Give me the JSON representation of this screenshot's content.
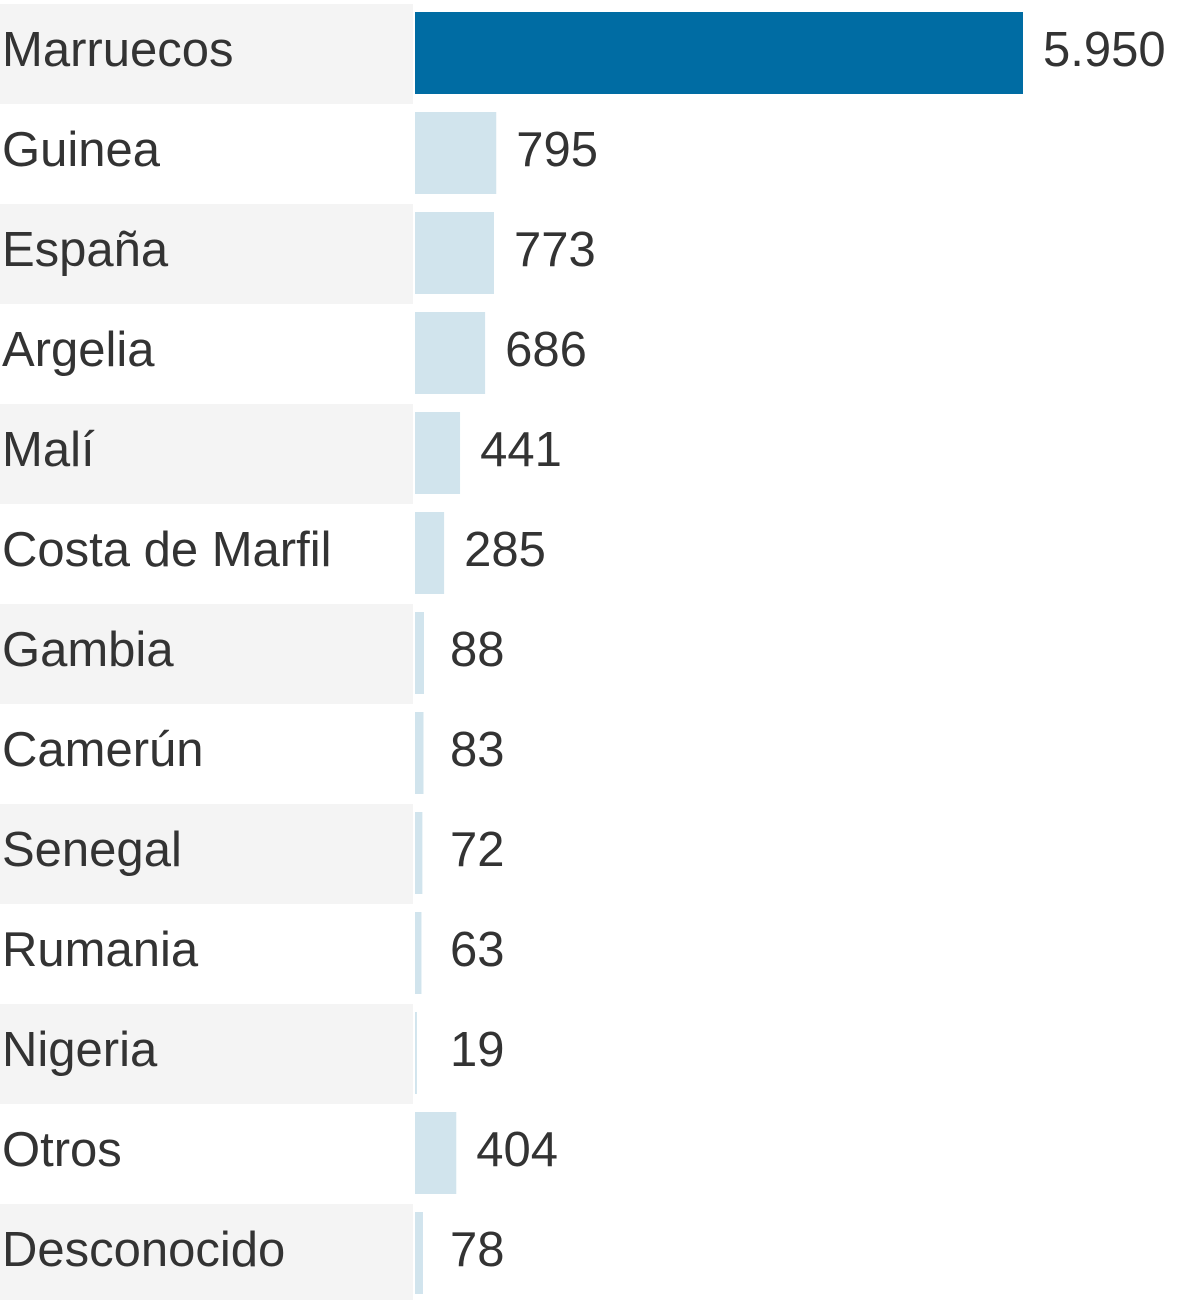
{
  "chart_data": {
    "type": "bar",
    "orientation": "horizontal",
    "categories": [
      "Marruecos",
      "Guinea",
      "España",
      "Argelia",
      "Malí",
      "Costa de Marfil",
      "Gambia",
      "Camerún",
      "Senegal",
      "Rumania",
      "Nigeria",
      "Otros",
      "Desconocido"
    ],
    "values": [
      5950,
      795,
      773,
      686,
      441,
      285,
      88,
      83,
      72,
      63,
      19,
      404,
      78
    ],
    "value_labels": [
      "5.950",
      "795",
      "773",
      "686",
      "441",
      "285",
      "88",
      "83",
      "72",
      "63",
      "19",
      "404",
      "78"
    ],
    "colors": [
      "#006ca3",
      "#d1e4ed",
      "#d1e4ed",
      "#d1e4ed",
      "#d1e4ed",
      "#d1e4ed",
      "#d1e4ed",
      "#d1e4ed",
      "#d1e4ed",
      "#d1e4ed",
      "#d1e4ed",
      "#d1e4ed",
      "#d1e4ed"
    ]
  }
}
